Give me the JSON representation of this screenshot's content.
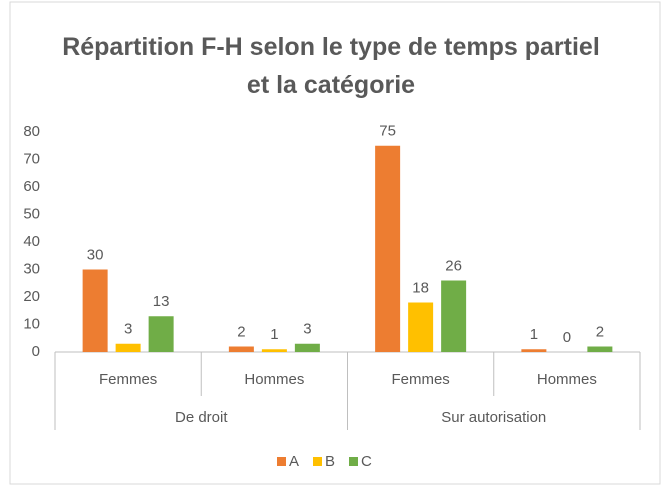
{
  "chart_data": {
    "type": "bar",
    "title": "Répartition F-H selon le type de temps partiel et la catégorie",
    "categories": [
      "Femmes",
      "Hommes",
      "Femmes",
      "Hommes"
    ],
    "groups": [
      "De droit",
      "Sur autorisation"
    ],
    "series": [
      {
        "name": "A",
        "color": "#ed7d31",
        "values": [
          30,
          2,
          75,
          1
        ]
      },
      {
        "name": "B",
        "color": "#ffc000",
        "values": [
          3,
          1,
          18,
          0
        ]
      },
      {
        "name": "C",
        "color": "#70ad47",
        "values": [
          13,
          3,
          26,
          2
        ]
      }
    ],
    "ylim": [
      0,
      80
    ],
    "yticks": [
      0,
      10,
      20,
      30,
      40,
      50,
      60,
      70,
      80
    ],
    "grid": false,
    "data_labels": true,
    "legend": "bottom"
  }
}
